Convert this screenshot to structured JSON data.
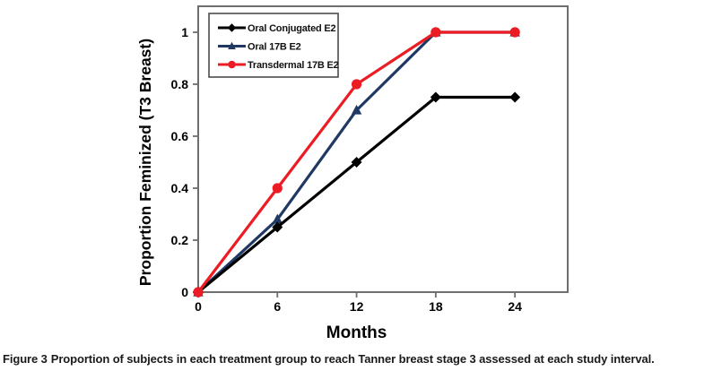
{
  "figure": {
    "caption_label": "Figure 3",
    "caption_text": "Proportion of subjects in each treatment group to reach Tanner breast stage 3 assessed at each study interval."
  },
  "chart_data": {
    "type": "line",
    "title": "",
    "xlabel": "Months",
    "ylabel": "Proportion Feminized (T3 Breast)",
    "x": [
      0,
      6,
      12,
      18,
      24
    ],
    "xticks": [
      0,
      6,
      12,
      18,
      24
    ],
    "yticks": [
      0,
      0.2,
      0.4,
      0.6,
      0.8,
      1
    ],
    "xlim": [
      0,
      28
    ],
    "ylim": [
      0,
      1.1
    ],
    "grid": false,
    "legend_position": "top-left-inside",
    "series": [
      {
        "name": "Oral Conjugated E2",
        "color": "#000000",
        "marker": "diamond",
        "zorder": 2,
        "values": [
          0,
          0.25,
          0.5,
          0.75,
          0.75
        ]
      },
      {
        "name": "Oral 17B E2",
        "color": "#1F3864",
        "marker": "triangle",
        "zorder": 1,
        "values": [
          0,
          0.28,
          0.7,
          1.0,
          1.0
        ]
      },
      {
        "name": "Transdermal 17B E2",
        "color": "#ED1C24",
        "marker": "circle",
        "zorder": 3,
        "values": [
          0,
          0.4,
          0.8,
          1.0,
          1.0
        ]
      }
    ]
  }
}
